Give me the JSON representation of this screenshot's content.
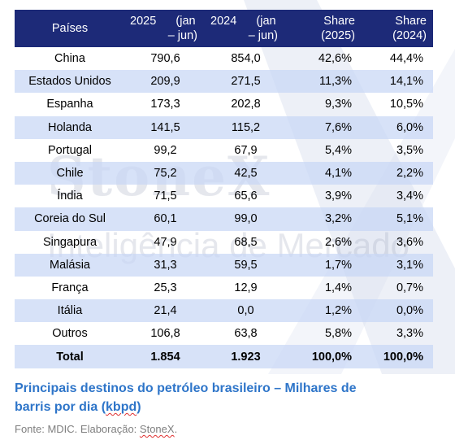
{
  "table": {
    "headers": [
      "Países",
      "2025      (jan – jun)",
      "2024      (jan – jun)",
      "Share (2025)",
      "Share (2024)"
    ],
    "header_lines": [
      [
        "Países"
      ],
      [
        "2025      (jan",
        "– jun)"
      ],
      [
        "2024      (jan",
        "– jun)"
      ],
      [
        "Share",
        "(2025)"
      ],
      [
        "Share",
        "(2024)"
      ]
    ],
    "rows": [
      [
        "China",
        "790,6",
        "854,0",
        "42,6%",
        "44,4%"
      ],
      [
        "Estados Unidos",
        "209,9",
        "271,5",
        "11,3%",
        "14,1%"
      ],
      [
        "Espanha",
        "173,3",
        "202,8",
        "9,3%",
        "10,5%"
      ],
      [
        "Holanda",
        "141,5",
        "115,2",
        "7,6%",
        "6,0%"
      ],
      [
        "Portugal",
        "99,2",
        "67,9",
        "5,4%",
        "3,5%"
      ],
      [
        "Chile",
        "75,2",
        "42,5",
        "4,1%",
        "2,2%"
      ],
      [
        "Índia",
        "71,5",
        "65,6",
        "3,9%",
        "3,4%"
      ],
      [
        "Coreia do Sul",
        "60,1",
        "99,0",
        "3,2%",
        "5,1%"
      ],
      [
        "Singapura",
        "47,9",
        "68,5",
        "2,6%",
        "3,6%"
      ],
      [
        "Malásia",
        "31,3",
        "59,5",
        "1,7%",
        "3,1%"
      ],
      [
        "França",
        "25,3",
        "12,9",
        "1,4%",
        "0,7%"
      ],
      [
        "Itália",
        "21,4",
        "0,0",
        "1,2%",
        "0,0%"
      ],
      [
        "Outros",
        "106,8",
        "63,8",
        "5,8%",
        "3,3%"
      ]
    ],
    "total": [
      "Total",
      "1.854",
      "1.923",
      "100,0%",
      "100,0%"
    ]
  },
  "watermark": {
    "logo": "StoneX",
    "tagline": "Inteligência de Mercado"
  },
  "caption": {
    "line1": "Principais destinos do petróleo brasileiro – Milhares de",
    "line2_main": "barris por dia (",
    "line2_unit": "kbpd",
    "line2_end": ")"
  },
  "source": {
    "prefix": "Fonte: MDIC. Elaboração: ",
    "brand": "StoneX",
    "suffix": "."
  },
  "colors": {
    "header_bg": "#1d2a78",
    "stripe_bg": "#c8d7f5",
    "caption": "#2e75c9",
    "source": "#7f7f7f"
  }
}
